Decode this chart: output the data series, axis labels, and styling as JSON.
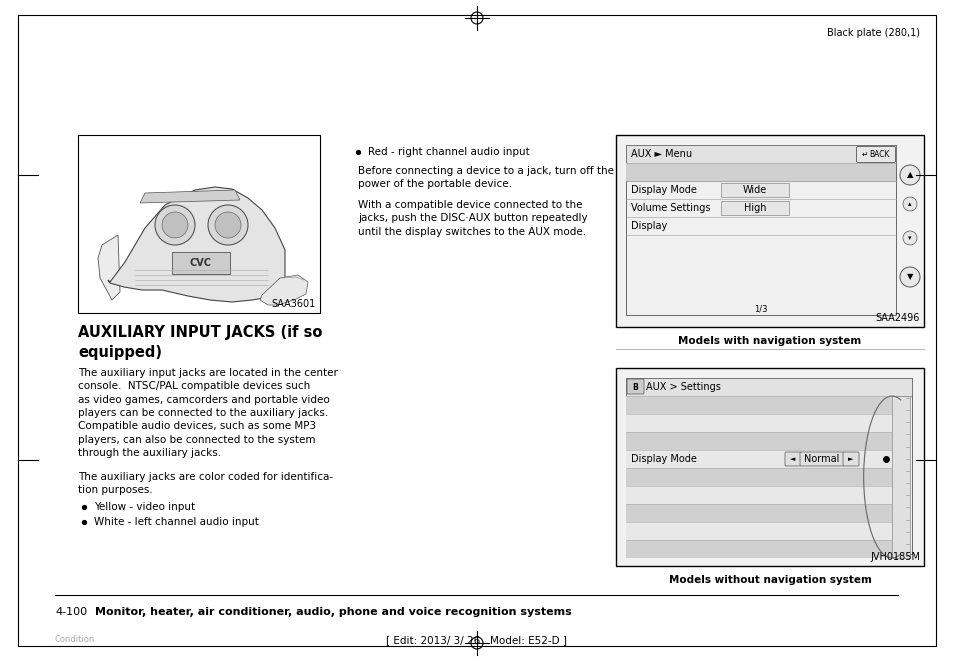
{
  "page_bg": "#ffffff",
  "border_color": "#000000",
  "header_text": "Black plate (280,1)",
  "footer_edit": "[ Edit: 2013/ 3/ 26   Model: E52-D ]",
  "footer_condition": "Condition",
  "page_num_prefix": "4-100",
  "page_num_bold": "Monitor, heater, air conditioner, audio, phone and voice recognition systems",
  "section_title": "AUXILIARY INPUT JACKS (if so\nequipped)",
  "body_text1": "The auxiliary input jacks are located in the center\nconsole.  NTSC/PAL compatible devices such\nas video games, camcorders and portable video\nplayers can be connected to the auxiliary jacks.\nCompatible audio devices, such as some MP3\nplayers, can also be connected to the system\nthrough the auxiliary jacks.",
  "body_text2": "The auxiliary jacks are color coded for identifica-\ntion purposes.",
  "bullet1": "Yellow - video input",
  "bullet2": "White - left channel audio input",
  "bullet3": "Red - right channel audio input",
  "para1": "Before connecting a device to a jack, turn off the\npower of the portable device.",
  "para2": "With a compatible device connected to the\njacks, push the DISC·AUX button repeatedly\nuntil the display switches to the AUX mode.",
  "img1_label": "SAA3601",
  "img2_label": "SAA2496",
  "img3_label": "JVH0185M",
  "nav_caption": "Models with navigation system",
  "nonav_caption": "Models without navigation system",
  "nav_screen_header": "AUX ► Menu",
  "nav_back_btn": "BACK",
  "nav_rows": [
    "Display Mode",
    "Volume Settings",
    "Display"
  ],
  "nav_values": [
    "Wide",
    "High",
    ""
  ],
  "nav_page_indicator": "1/3",
  "nonav_header": "AUX > Settings",
  "nonav_row_label": "Display Mode",
  "nonav_row_value": "Normal",
  "text_color": "#000000",
  "light_gray": "#cccccc",
  "mid_gray": "#888888"
}
